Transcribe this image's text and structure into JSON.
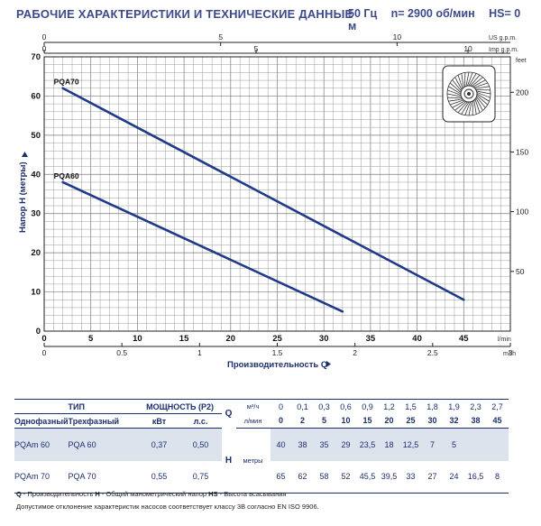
{
  "header": {
    "title": "РАБОЧИЕ ХАРАКТЕРИСТИКИ И ТЕХНИЧЕСКИЕ ДАННЫЕ",
    "freq": "50 Гц",
    "speed": "n= 2900 об/мин",
    "hs": "HS= 0 м"
  },
  "chart_data": {
    "type": "line",
    "xlabel": "Производительность Q",
    "ylabel": "Напор H (метры)",
    "x_unit": "l/min",
    "xlim": [
      0,
      50
    ],
    "ylim": [
      0,
      70
    ],
    "x_ticks": [
      "0",
      "5",
      "10",
      "15",
      "20",
      "25",
      "30",
      "35",
      "40",
      "45"
    ],
    "y_ticks": [
      "0",
      "10",
      "20",
      "30",
      "40",
      "50",
      "60",
      "70"
    ],
    "top_axis_us": {
      "unit": "US g.p.m.",
      "ticks": [
        "0",
        "5",
        "10"
      ]
    },
    "top_axis_imp": {
      "unit": "Imp g.p.m.",
      "ticks": [
        "0",
        "5",
        "10"
      ]
    },
    "bottom_axis_m3h": {
      "unit": "m³/h",
      "ticks": [
        "0",
        "0.5",
        "1",
        "1.5",
        "2",
        "2.5",
        "3"
      ]
    },
    "right_axis_feet": {
      "unit": "feet",
      "ticks": [
        "50",
        "100",
        "150",
        "200"
      ]
    },
    "series": [
      {
        "name": "PQA70",
        "x": [
          2,
          45
        ],
        "y": [
          62,
          8
        ]
      },
      {
        "name": "PQA60",
        "x": [
          2,
          32
        ],
        "y": [
          38,
          5
        ]
      }
    ]
  },
  "table": {
    "type_head": "ТИП",
    "power_head": "МОЩНОСТЬ (P2)",
    "q_head": "Q",
    "unit_m3h": "м³/ч",
    "unit_lmin": "л/мин",
    "single_phase": "Однофазный",
    "three_phase": "Трехфазный",
    "kw": "кВт",
    "hp": "л.с.",
    "h_head": "H",
    "h_unit": "метры",
    "q_m3h": [
      "0",
      "0,1",
      "0,3",
      "0,6",
      "0,9",
      "1,2",
      "1,5",
      "1,8",
      "1,9",
      "2,3",
      "2,7"
    ],
    "q_lmin": [
      "0",
      "2",
      "5",
      "10",
      "15",
      "20",
      "25",
      "30",
      "32",
      "38",
      "45"
    ],
    "rows": [
      {
        "single": "PQAm 60",
        "three": "PQA 60",
        "kw": "0,37",
        "hp": "0,50",
        "h": [
          "40",
          "38",
          "35",
          "29",
          "23,5",
          "18",
          "12,5",
          "7",
          "5",
          "",
          ""
        ]
      },
      {
        "single": "PQAm 70",
        "three": "PQA 70",
        "kw": "0,55",
        "hp": "0,75",
        "h": [
          "65",
          "62",
          "58",
          "52",
          "45,5",
          "39,5",
          "33",
          "27",
          "24",
          "16,5",
          "8"
        ]
      }
    ]
  },
  "footer": {
    "legend_q": "Q",
    "legend_q_text": " - Производительность ",
    "legend_h": "H",
    "legend_h_text": " - Общий манометрический напор ",
    "legend_hs": "HS",
    "legend_hs_text": " - Высота всасывания",
    "note": "Допустимое отклонение характеристик насосов соответствует классу 3B согласно EN ISO 9906."
  },
  "colors": {
    "curve": "#1f3a8a",
    "text": "#1b2e6e",
    "row_highlight": "#dde3ec"
  }
}
